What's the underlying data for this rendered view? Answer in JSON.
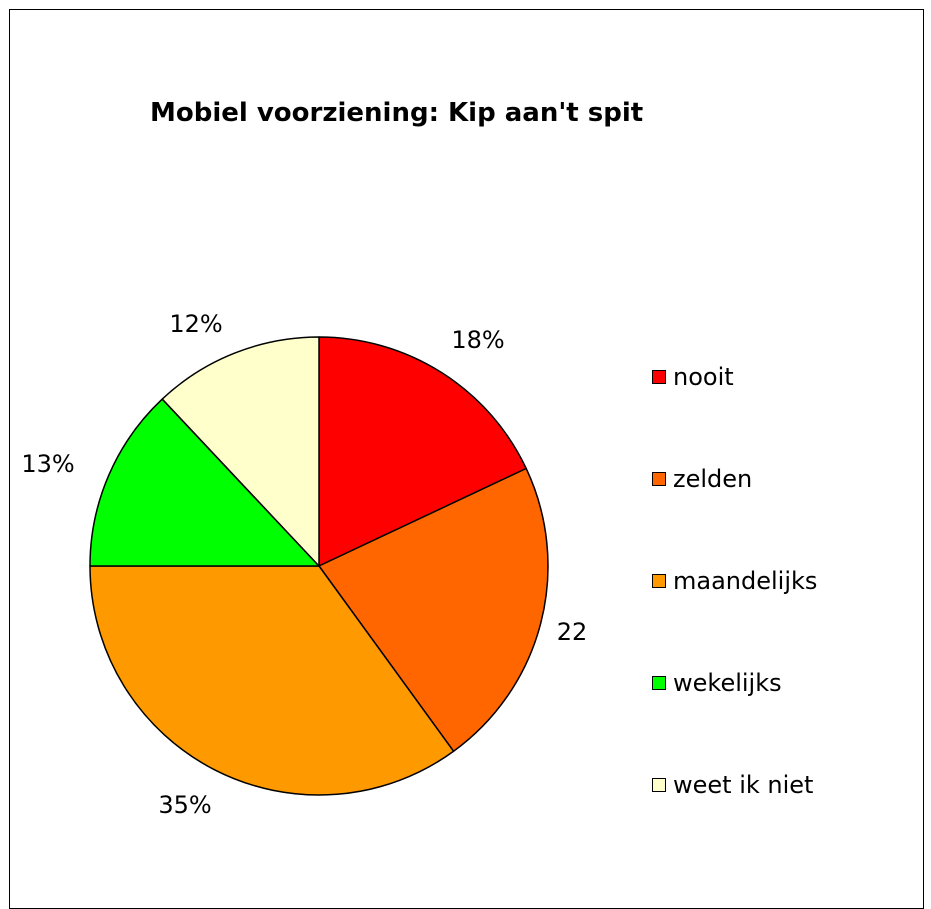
{
  "chart_data": {
    "type": "pie",
    "title": "Mobiel voorziening: Kip aan't spit",
    "categories": [
      "nooit",
      "zelden",
      "maandelijks",
      "wekelijks",
      "weet ik niet"
    ],
    "values": [
      18,
      22,
      35,
      13,
      12
    ],
    "value_labels": [
      "18%",
      "22",
      "35%",
      "13%",
      "12%"
    ],
    "colors": [
      "#ff0000",
      "#ff6600",
      "#ff9900",
      "#00ff00",
      "#ffffcc"
    ],
    "legend_position": "right",
    "start_angle_deg": 0,
    "direction": "clockwise"
  }
}
